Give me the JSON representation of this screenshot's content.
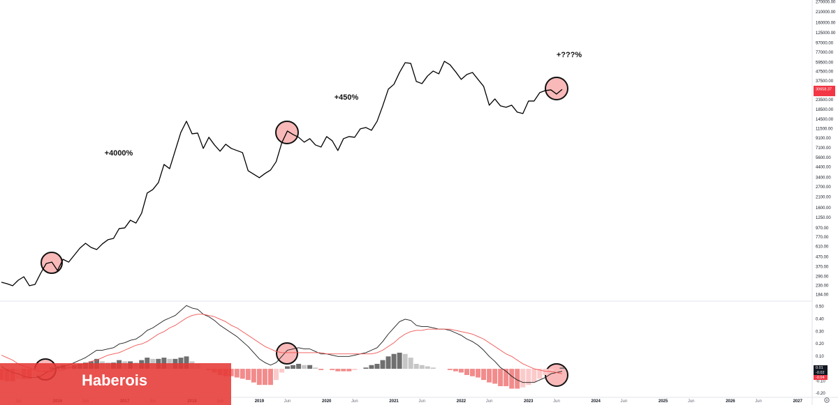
{
  "chart_data": {
    "type": "line",
    "watermark": "Haberois",
    "annotations": [
      "+4000%",
      "+450%",
      "+???%"
    ],
    "categories": [
      null,
      null,
      null,
      "Jul",
      null,
      null,
      null,
      null,
      null,
      null,
      "2016",
      null,
      null,
      null,
      null,
      "Jun",
      null,
      null,
      null,
      null,
      null,
      null,
      "2017",
      null,
      null,
      null,
      null,
      "Jun",
      null,
      null,
      null,
      null,
      null,
      null,
      "2018",
      null,
      null,
      null,
      null,
      "Jun",
      null,
      null,
      null,
      null,
      null,
      null,
      "2019",
      null,
      null,
      null,
      null,
      "Jun",
      null,
      null,
      null,
      null,
      null,
      null,
      "2020",
      null,
      null,
      null,
      null,
      "Jun",
      null,
      null,
      null,
      null,
      null,
      null,
      "2021",
      null,
      null,
      null,
      null,
      "Jun",
      null,
      null,
      null,
      null,
      null,
      null,
      "2022",
      null,
      null,
      null,
      null,
      "Jun",
      null,
      null,
      null,
      null,
      null,
      null,
      "2023",
      null,
      null,
      null,
      null,
      "Jun",
      null,
      null,
      null,
      null,
      null,
      null,
      "2024",
      null,
      null,
      null,
      null,
      "Jun",
      null,
      null,
      null,
      null,
      null,
      null,
      "2025",
      null,
      null,
      null,
      null,
      "Jun",
      null,
      null,
      null,
      null,
      null,
      null,
      "2026",
      null,
      null,
      null,
      null,
      "Jun",
      null,
      null,
      null,
      null,
      null,
      null,
      "2027"
    ],
    "ylog": true,
    "ylim": [
      163,
      284000
    ],
    "yticks": [
      {
        "value": 270000,
        "label": "270000.00"
      },
      {
        "value": 210000,
        "label": "210000.00"
      },
      {
        "value": 160000,
        "label": "160000.00"
      },
      {
        "value": 125000,
        "label": "125000.00"
      },
      {
        "value": 97000,
        "label": "97000.00"
      },
      {
        "value": 77000,
        "label": "77000.00"
      },
      {
        "value": 59500,
        "label": "59500.00"
      },
      {
        "value": 47500,
        "label": "47500.00"
      },
      {
        "value": 37500,
        "label": "37500.00"
      },
      {
        "value": 23500,
        "label": "23500.00"
      },
      {
        "value": 18500,
        "label": "18500.00"
      },
      {
        "value": 14500,
        "label": "14500.00"
      },
      {
        "value": 11500,
        "label": "11500.00"
      },
      {
        "value": 9100,
        "label": "9100.00"
      },
      {
        "value": 7100,
        "label": "7100.00"
      },
      {
        "value": 5600,
        "label": "5600.00"
      },
      {
        "value": 4400,
        "label": "4400.00"
      },
      {
        "value": 3400,
        "label": "3400.00"
      },
      {
        "value": 2700,
        "label": "2700.00"
      },
      {
        "value": 2100,
        "label": "2100.00"
      },
      {
        "value": 1600,
        "label": "1600.00"
      },
      {
        "value": 1250,
        "label": "1250.00"
      },
      {
        "value": 970,
        "label": "970.00"
      },
      {
        "value": 770,
        "label": "770.00"
      },
      {
        "value": 610,
        "label": "610.00"
      },
      {
        "value": 470,
        "label": "470.00"
      },
      {
        "value": 370,
        "label": "370.00"
      },
      {
        "value": 290,
        "label": "290.00"
      },
      {
        "value": 230,
        "label": "230.00"
      },
      {
        "value": 184,
        "label": "184.00"
      }
    ],
    "y2lim": [
      -0.23,
      0.54
    ],
    "y2ticks": [
      {
        "value": 0.5,
        "label": "0.50"
      },
      {
        "value": 0.4,
        "label": "0.40"
      },
      {
        "value": 0.3,
        "label": "0.30"
      },
      {
        "value": 0.2,
        "label": "0.20"
      },
      {
        "value": 0.1,
        "label": "0.10"
      },
      {
        "value": -0.1,
        "label": "-0.10"
      },
      {
        "value": -0.2,
        "label": "-0.20"
      }
    ],
    "series": [
      {
        "color": "#000000",
        "values": [
          252,
          243,
          231,
          265,
          289,
          231,
          239,
          315,
          402,
          416,
          338,
          446,
          416,
          495,
          589,
          665,
          599,
          569,
          654,
          726,
          751,
          958,
          975,
          1180,
          1100,
          1404,
          2322,
          2532,
          3012,
          4731,
          4263,
          6695,
          10510,
          13880,
          10150,
          10330,
          7052,
          9310,
          7691,
          6579,
          7825,
          7052,
          6695,
          6355,
          4047,
          3710,
          3401,
          3775,
          4117,
          5072,
          8103,
          10880,
          9979,
          9310,
          8244,
          8989,
          7691,
          7302,
          9474,
          8536,
          6695,
          8989,
          9474,
          9310,
          11470,
          11870,
          11080,
          13880,
          20330,
          30840,
          34820,
          46770,
          59650,
          58610,
          37330,
          35430,
          42880,
          48430,
          45170,
          61750,
          56600,
          47590,
          39320,
          44400,
          46770,
          39320,
          33050,
          20690,
          24180,
          20330,
          19640,
          20690,
          17390,
          16800,
          22960,
          22960,
          28280,
          29790,
          30310,
          27310,
          30658.37,
          null,
          null,
          null,
          null,
          null,
          null,
          null,
          null,
          null,
          null,
          null,
          null,
          null,
          null,
          null,
          null,
          null,
          null,
          null,
          null,
          null,
          null,
          null,
          null,
          null,
          null,
          null,
          null,
          null,
          null,
          null,
          null,
          null,
          null,
          null,
          null,
          null,
          null,
          null,
          null,
          null,
          null
        ]
      },
      {
        "color": "#1a1a1a",
        "axis": "y2",
        "values": [
          0.02,
          -0.01,
          -0.03,
          -0.04,
          -0.06,
          -0.07,
          -0.07,
          -0.06,
          -0.03,
          -0.01,
          0.01,
          0.02,
          0.03,
          0.05,
          0.07,
          0.09,
          0.12,
          0.15,
          0.15,
          0.16,
          0.17,
          0.2,
          0.21,
          0.23,
          0.24,
          0.27,
          0.31,
          0.33,
          0.36,
          0.39,
          0.41,
          0.43,
          0.47,
          0.51,
          0.49,
          0.48,
          0.44,
          0.42,
          0.39,
          0.35,
          0.32,
          0.29,
          0.26,
          0.22,
          0.18,
          0.13,
          0.08,
          0.05,
          0.03,
          0.05,
          0.1,
          0.15,
          0.16,
          0.17,
          0.16,
          0.16,
          0.14,
          0.12,
          0.12,
          0.11,
          0.1,
          0.1,
          0.1,
          0.11,
          0.12,
          0.13,
          0.15,
          0.17,
          0.22,
          0.28,
          0.33,
          0.38,
          0.4,
          0.39,
          0.35,
          0.34,
          0.34,
          0.33,
          0.32,
          0.32,
          0.31,
          0.29,
          0.27,
          0.24,
          0.22,
          0.19,
          0.15,
          0.1,
          0.06,
          0.01,
          -0.02,
          -0.06,
          -0.09,
          -0.11,
          -0.11,
          -0.11,
          -0.09,
          -0.07,
          -0.04,
          -0.03,
          -0.02,
          null,
          null,
          null,
          null,
          null,
          null,
          null,
          null,
          null,
          null,
          null,
          null,
          null,
          null,
          null,
          null,
          null,
          null,
          null,
          null,
          null,
          null,
          null,
          null,
          null,
          null,
          null,
          null,
          null,
          null,
          null,
          null,
          null,
          null,
          null,
          null,
          null,
          null,
          null,
          null,
          null,
          null
        ]
      },
      {
        "color": "#ef5350",
        "axis": "y2",
        "values": [
          0.11,
          0.09,
          0.07,
          0.04,
          0.02,
          0.01,
          -0.01,
          -0.02,
          -0.02,
          -0.02,
          -0.01,
          -0.01,
          0.01,
          0.02,
          0.03,
          0.04,
          0.06,
          0.07,
          0.09,
          0.11,
          0.12,
          0.13,
          0.15,
          0.17,
          0.19,
          0.2,
          0.22,
          0.25,
          0.28,
          0.3,
          0.33,
          0.35,
          0.38,
          0.41,
          0.43,
          0.44,
          0.44,
          0.43,
          0.42,
          0.4,
          0.38,
          0.35,
          0.33,
          0.3,
          0.27,
          0.24,
          0.21,
          0.18,
          0.16,
          0.14,
          0.13,
          0.13,
          0.13,
          0.13,
          0.13,
          0.13,
          0.13,
          0.13,
          0.12,
          0.12,
          0.12,
          0.12,
          0.12,
          0.12,
          0.12,
          0.12,
          0.12,
          0.13,
          0.15,
          0.18,
          0.21,
          0.25,
          0.28,
          0.3,
          0.31,
          0.31,
          0.32,
          0.32,
          0.32,
          0.32,
          0.32,
          0.31,
          0.3,
          0.29,
          0.28,
          0.26,
          0.24,
          0.21,
          0.18,
          0.15,
          0.12,
          0.1,
          0.07,
          0.04,
          0.02,
          0,
          -0.01,
          -0.02,
          -0.02,
          -0.03,
          -0.04,
          null,
          null,
          null,
          null,
          null,
          null,
          null,
          null,
          null,
          null,
          null,
          null,
          null,
          null,
          null,
          null,
          null,
          null,
          null,
          null,
          null,
          null,
          null,
          null,
          null,
          null,
          null,
          null,
          null,
          null,
          null,
          null,
          null,
          null,
          null,
          null,
          null,
          null,
          null,
          null,
          null,
          null
        ]
      },
      {
        "type": "bar",
        "axis": "y2",
        "colors": [
          "#6f6f6f",
          "#c6c6c6",
          "#f28b8b",
          "#fbcaca"
        ],
        "values": [
          -0.09,
          -0.1,
          -0.1,
          -0.08,
          -0.08,
          -0.08,
          -0.06,
          -0.04,
          -0.01,
          0.01,
          0.02,
          0.03,
          0.02,
          0.03,
          0.04,
          0.05,
          0.06,
          0.08,
          0.06,
          0.05,
          0.05,
          0.07,
          0.06,
          0.06,
          0.05,
          0.07,
          0.09,
          0.08,
          0.08,
          0.09,
          0.08,
          0.08,
          0.09,
          0.1,
          0.06,
          0.04,
          0,
          -0.01,
          -0.03,
          -0.05,
          -0.06,
          -0.06,
          -0.07,
          -0.08,
          -0.09,
          -0.11,
          -0.13,
          -0.13,
          -0.13,
          -0.09,
          -0.03,
          0.02,
          0.03,
          0.04,
          0.03,
          0.03,
          0.01,
          -0.01,
          0,
          -0.01,
          -0.02,
          -0.02,
          -0.02,
          -0.01,
          0,
          0.01,
          0.03,
          0.04,
          0.07,
          0.1,
          0.12,
          0.13,
          0.12,
          0.09,
          0.04,
          0.03,
          0.02,
          0.01,
          0,
          0,
          -0.01,
          -0.02,
          -0.03,
          -0.05,
          -0.06,
          -0.07,
          -0.09,
          -0.11,
          -0.12,
          -0.14,
          -0.14,
          -0.16,
          -0.16,
          -0.15,
          -0.13,
          -0.11,
          -0.08,
          -0.05,
          -0.02,
          0,
          0.01,
          null,
          null,
          null,
          null,
          null,
          null,
          null,
          null,
          null,
          null,
          null,
          null,
          null,
          null,
          null,
          null,
          null,
          null,
          null,
          null,
          null,
          null,
          null,
          null,
          null,
          null,
          null,
          null,
          null,
          null,
          null,
          null,
          null,
          null,
          null,
          null,
          null,
          null,
          null,
          null,
          null,
          null
        ]
      }
    ]
  }
}
